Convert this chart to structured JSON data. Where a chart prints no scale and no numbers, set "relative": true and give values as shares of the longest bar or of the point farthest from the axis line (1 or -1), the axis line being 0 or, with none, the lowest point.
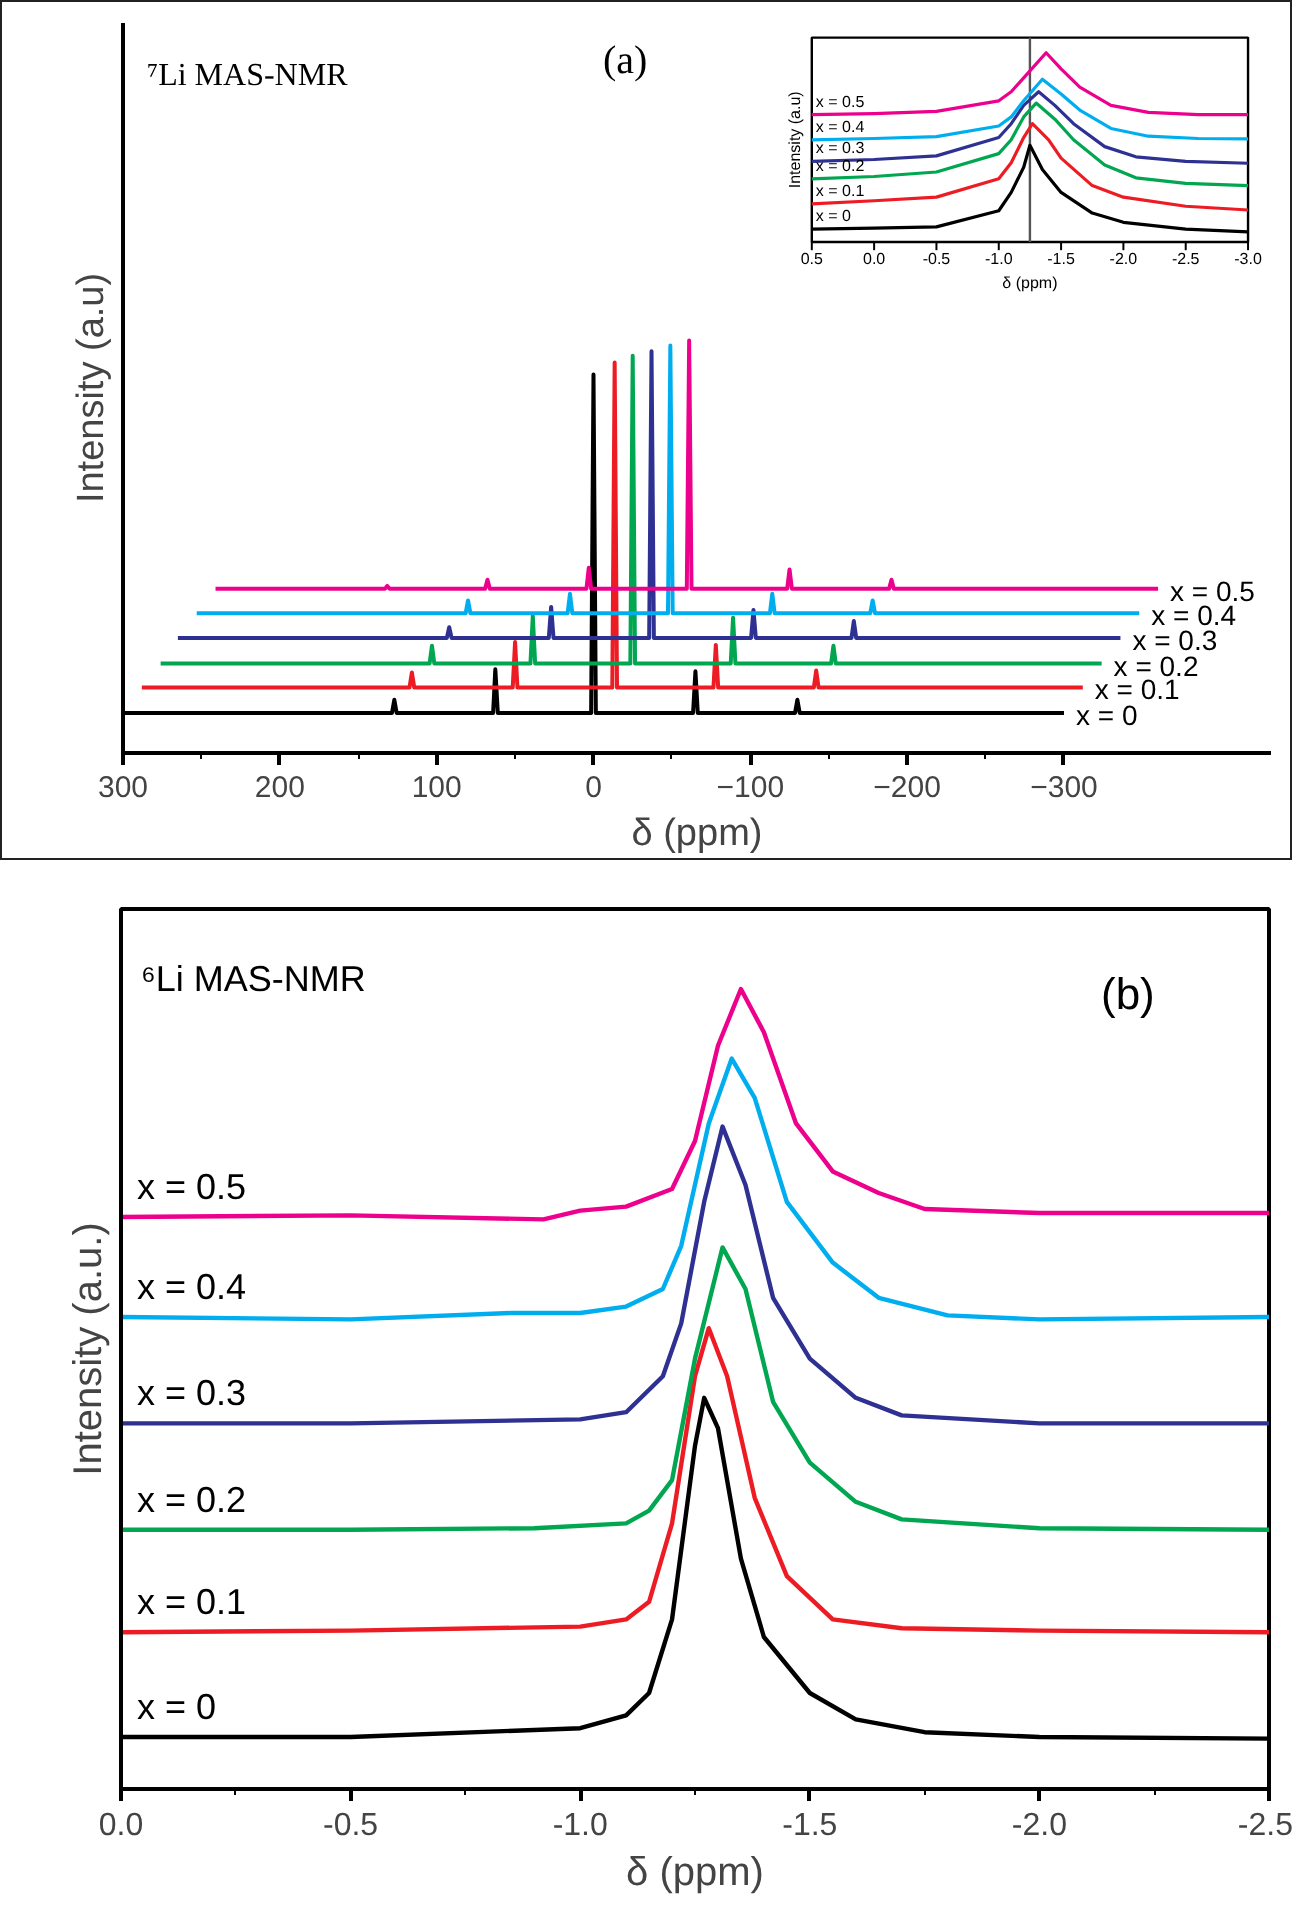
{
  "chart_data": [
    {
      "type": "line",
      "relative": true,
      "xlabel": "δ (ppm)",
      "ylabel": "Intensity (a.u)",
      "annotations": [
        "⁷Li MAS-NMR",
        "(a)"
      ],
      "xlim": [
        300,
        -432
      ],
      "xticks": [
        300,
        200,
        100,
        0,
        -100,
        -200,
        -300
      ],
      "series": [
        {
          "name": "x = 0",
          "color": "#000000",
          "x": [
            300,
            128.5,
            127,
            125.5,
            64,
            62.6,
            61,
            1.5,
            0,
            -1.5,
            -63.5,
            -65,
            -66.5,
            -128.5,
            -130,
            -131.5,
            -300
          ],
          "values": [
            0.097,
            0.097,
            0.129,
            0.097,
            0.097,
            0.203,
            0.097,
            0.097,
            0.918,
            0.097,
            0.097,
            0.198,
            0.097,
            0.097,
            0.129,
            0.097,
            0.097
          ]
        },
        {
          "name": "x = 0.1",
          "color": "#ed1c24",
          "x": [
            288,
            117.3,
            115.8,
            114.3,
            51.5,
            50,
            48.5,
            -12,
            -13.5,
            -15,
            -76.5,
            -78,
            -79.5,
            -140.5,
            -142,
            -143.5,
            -312
          ],
          "values": [
            0.159,
            0.159,
            0.195,
            0.159,
            0.159,
            0.269,
            0.159,
            0.159,
            0.947,
            0.159,
            0.159,
            0.262,
            0.159,
            0.159,
            0.2,
            0.159,
            0.159
          ]
        },
        {
          "name": "x = 0.2",
          "color": "#00a650",
          "x": [
            276,
            104.5,
            103,
            101.5,
            40.2,
            38.7,
            37.2,
            -23.5,
            -25,
            -26.5,
            -87.5,
            -89,
            -90.5,
            -151.5,
            -153,
            -154.5,
            -324
          ],
          "values": [
            0.217,
            0.217,
            0.26,
            0.217,
            0.217,
            0.332,
            0.217,
            0.217,
            0.963,
            0.217,
            0.217,
            0.328,
            0.217,
            0.217,
            0.26,
            0.217,
            0.217
          ]
        },
        {
          "name": "x = 0.3",
          "color": "#2e3192",
          "x": [
            265,
            93.5,
            92,
            90.5,
            28.5,
            27,
            25.5,
            -35.5,
            -37,
            -38.5,
            -100.5,
            -102,
            -103.5,
            -164.5,
            -166,
            -167.5,
            -336
          ],
          "values": [
            0.279,
            0.279,
            0.305,
            0.279,
            0.279,
            0.354,
            0.279,
            0.279,
            0.974,
            0.279,
            0.279,
            0.347,
            0.279,
            0.279,
            0.32,
            0.279,
            0.279
          ]
        },
        {
          "name": "x = 0.4",
          "color": "#00aeef",
          "x": [
            253,
            81.5,
            80,
            78.5,
            16.5,
            15,
            13.5,
            -47.5,
            -49,
            -50.5,
            -112.5,
            -114,
            -115.5,
            -176.5,
            -178,
            -179.5,
            -348
          ],
          "values": [
            0.339,
            0.339,
            0.37,
            0.339,
            0.339,
            0.386,
            0.339,
            0.339,
            0.988,
            0.339,
            0.339,
            0.386,
            0.339,
            0.339,
            0.37,
            0.339,
            0.339
          ]
        },
        {
          "name": "x = 0.5",
          "color": "#ec008c",
          "x": [
            241,
            133,
            131.5,
            130,
            69.1,
            67.6,
            66.1,
            4.5,
            3,
            1.5,
            -59.5,
            -61,
            -62.5,
            -123.5,
            -125,
            -126.5,
            -188.5,
            -190,
            -191.5,
            -360
          ],
          "values": [
            0.398,
            0.398,
            0.405,
            0.398,
            0.398,
            0.42,
            0.398,
            0.398,
            0.449,
            0.398,
            0.398,
            1.0,
            0.398,
            0.398,
            0.445,
            0.398,
            0.398,
            0.42,
            0.398,
            0.398
          ]
        }
      ]
    },
    {
      "type": "line",
      "relative": true,
      "xlabel": "δ (ppm)",
      "ylabel": "Intensity (a.u)",
      "xlim": [
        0.5,
        -3.0
      ],
      "xticks": [
        {
          "value": 0.5,
          "label": "0.5"
        },
        {
          "value": 0,
          "label": "0.0"
        },
        {
          "value": -0.5,
          "label": "-0.5"
        },
        {
          "value": -1,
          "label": "-1.0"
        },
        {
          "value": -1.5,
          "label": "-1.5"
        },
        {
          "value": -2,
          "label": "-2.0"
        },
        {
          "value": -2.5,
          "label": "-2.5"
        },
        {
          "value": -3,
          "label": "-3.0"
        }
      ],
      "ref_lines": [
        {
          "axis": "x",
          "value": -1.25
        }
      ],
      "series": [
        {
          "name": "x = 0",
          "color": "#000000",
          "x": [
            0.5,
            0,
            -0.5,
            -1.0,
            -1.1,
            -1.2,
            -1.25,
            -1.35,
            -1.5,
            -1.75,
            -2.0,
            -2.5,
            -3.0
          ],
          "values": [
            0.068,
            0.073,
            0.08,
            0.165,
            0.262,
            0.395,
            0.511,
            0.383,
            0.262,
            0.153,
            0.104,
            0.068,
            0.053
          ]
        },
        {
          "name": "x = 0.1",
          "color": "#ed1c24",
          "x": [
            0.5,
            0,
            -0.5,
            -1.0,
            -1.1,
            -1.2,
            -1.27,
            -1.4,
            -1.5,
            -1.75,
            -2.0,
            -2.5,
            -3.0
          ],
          "values": [
            0.201,
            0.218,
            0.237,
            0.334,
            0.419,
            0.552,
            0.625,
            0.54,
            0.443,
            0.298,
            0.237,
            0.189,
            0.169
          ]
        },
        {
          "name": "x = 0.2",
          "color": "#00a650",
          "x": [
            0.5,
            0,
            -0.5,
            -1.0,
            -1.1,
            -1.2,
            -1.3,
            -1.45,
            -1.6,
            -1.85,
            -2.1,
            -2.5,
            -3.0
          ],
          "values": [
            0.334,
            0.346,
            0.37,
            0.467,
            0.54,
            0.661,
            0.734,
            0.649,
            0.54,
            0.407,
            0.339,
            0.31,
            0.298
          ]
        },
        {
          "name": "x = 0.3",
          "color": "#2e3192",
          "x": [
            0.5,
            0,
            -0.5,
            -1.0,
            -1.1,
            -1.2,
            -1.32,
            -1.45,
            -1.6,
            -1.85,
            -2.1,
            -2.5,
            -3.0
          ],
          "values": [
            0.426,
            0.436,
            0.455,
            0.552,
            0.625,
            0.722,
            0.794,
            0.722,
            0.625,
            0.504,
            0.45,
            0.426,
            0.416
          ]
        },
        {
          "name": "x = 0.4",
          "color": "#00aeef",
          "x": [
            0.5,
            0,
            -0.5,
            -1.0,
            -1.1,
            -1.2,
            -1.35,
            -1.5,
            -1.65,
            -1.9,
            -2.2,
            -2.6,
            -3.0
          ],
          "values": [
            0.54,
            0.547,
            0.557,
            0.613,
            0.661,
            0.746,
            0.86,
            0.782,
            0.697,
            0.6,
            0.559,
            0.547,
            0.545
          ]
        },
        {
          "name": "x = 0.5",
          "color": "#ec008c",
          "x": [
            0.5,
            0,
            -0.5,
            -1.0,
            -1.1,
            -1.2,
            -1.38,
            -1.5,
            -1.65,
            -1.9,
            -2.2,
            -2.6,
            -3.0
          ],
          "values": [
            0.673,
            0.678,
            0.69,
            0.746,
            0.794,
            0.867,
            1.0,
            0.915,
            0.818,
            0.722,
            0.685,
            0.673,
            0.673
          ]
        }
      ]
    },
    {
      "type": "line",
      "relative": true,
      "xlabel": "δ (ppm)",
      "ylabel": "Intensity (a.u.)",
      "annotations": [
        "⁶Li MAS-NMR",
        "(b)"
      ],
      "xlim": [
        0,
        -2.5
      ],
      "xticks": [
        {
          "value": 0,
          "label": "0.0"
        },
        {
          "value": -0.5,
          "label": "-0.5"
        },
        {
          "value": -1,
          "label": "-1.0"
        },
        {
          "value": -1.5,
          "label": "-1.5"
        },
        {
          "value": -2,
          "label": "-2.0"
        },
        {
          "value": -2.5,
          "label": "-2.5"
        }
      ],
      "series": [
        {
          "name": "x = 0",
          "color": "#000000",
          "x": [
            0,
            -0.5,
            -1.0,
            -1.1,
            -1.15,
            -1.2,
            -1.25,
            -1.27,
            -1.3,
            -1.35,
            -1.4,
            -1.5,
            -1.6,
            -1.75,
            -2.0,
            -2.5
          ],
          "values": [
            0.065,
            0.065,
            0.076,
            0.092,
            0.12,
            0.212,
            0.429,
            0.489,
            0.451,
            0.288,
            0.19,
            0.12,
            0.087,
            0.071,
            0.065,
            0.063
          ]
        },
        {
          "name": "x = 0.1",
          "color": "#ed1c24",
          "x": [
            0,
            -0.5,
            -1.0,
            -1.1,
            -1.15,
            -1.2,
            -1.25,
            -1.28,
            -1.32,
            -1.38,
            -1.45,
            -1.55,
            -1.7,
            -2.0,
            -2.5
          ],
          "values": [
            0.196,
            0.198,
            0.203,
            0.212,
            0.234,
            0.332,
            0.516,
            0.576,
            0.516,
            0.364,
            0.266,
            0.212,
            0.201,
            0.198,
            0.196
          ]
        },
        {
          "name": "x = 0.2",
          "color": "#00a650",
          "x": [
            0,
            -0.5,
            -0.9,
            -1.1,
            -1.15,
            -1.2,
            -1.25,
            -1.31,
            -1.36,
            -1.42,
            -1.5,
            -1.6,
            -1.7,
            -2.0,
            -2.5
          ],
          "values": [
            0.324,
            0.324,
            0.326,
            0.332,
            0.348,
            0.386,
            0.538,
            0.677,
            0.625,
            0.484,
            0.408,
            0.359,
            0.337,
            0.326,
            0.324
          ]
        },
        {
          "name": "x = 0.3",
          "color": "#2e3192",
          "x": [
            0,
            -0.5,
            -1.0,
            -1.1,
            -1.18,
            -1.22,
            -1.27,
            -1.31,
            -1.36,
            -1.42,
            -1.5,
            -1.6,
            -1.7,
            -2.0,
            -2.5
          ],
          "values": [
            0.457,
            0.457,
            0.462,
            0.471,
            0.516,
            0.582,
            0.734,
            0.828,
            0.755,
            0.614,
            0.538,
            0.489,
            0.467,
            0.457,
            0.457
          ]
        },
        {
          "name": "x = 0.4",
          "color": "#00aeef",
          "x": [
            0,
            -0.5,
            -0.85,
            -1.0,
            -1.1,
            -1.18,
            -1.22,
            -1.28,
            -1.33,
            -1.38,
            -1.45,
            -1.55,
            -1.65,
            -1.8,
            -2.0,
            -2.5
          ],
          "values": [
            0.59,
            0.587,
            0.595,
            0.595,
            0.603,
            0.625,
            0.679,
            0.832,
            0.913,
            0.864,
            0.734,
            0.658,
            0.614,
            0.592,
            0.587,
            0.59
          ]
        },
        {
          "name": "x = 0.5",
          "color": "#ec008c",
          "x": [
            0,
            -0.5,
            -0.92,
            -1.0,
            -1.1,
            -1.2,
            -1.25,
            -1.3,
            -1.35,
            -1.4,
            -1.47,
            -1.55,
            -1.65,
            -1.75,
            -2.0,
            -2.5
          ],
          "values": [
            0.715,
            0.717,
            0.712,
            0.723,
            0.728,
            0.75,
            0.81,
            0.929,
            1.0,
            0.946,
            0.832,
            0.772,
            0.745,
            0.725,
            0.72,
            0.72
          ]
        }
      ]
    }
  ]
}
